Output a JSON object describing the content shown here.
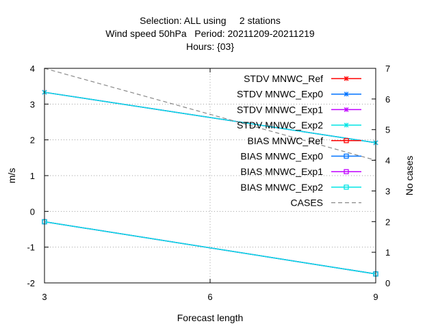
{
  "chart_data": {
    "type": "line",
    "title_lines": [
      "Selection: ALL using     2 stations",
      "Wind speed 50hPa   Period: 20211209-20211219",
      "Hours: {03}"
    ],
    "xlabel": "Forecast length",
    "ylabel": "m/s",
    "y2label": "No cases",
    "x_ticks": [
      3,
      6,
      9
    ],
    "y_ticks": [
      -2,
      -1,
      0,
      1,
      2,
      3,
      4
    ],
    "y2_ticks": [
      0,
      1,
      2,
      3,
      4,
      5,
      6,
      7
    ],
    "xlim": [
      3,
      9
    ],
    "ylim": [
      -2,
      4
    ],
    "y2lim": [
      0,
      7
    ],
    "grid": true,
    "legend_position": "top-right",
    "series": [
      {
        "name": "STDV MNWC_Ref",
        "color": "#ff0000",
        "marker": "x",
        "axis": "y1",
        "x": [
          3,
          9
        ],
        "values": [
          3.33,
          1.92
        ]
      },
      {
        "name": "STDV MNWC_Exp0",
        "color": "#0072ff",
        "marker": "x",
        "axis": "y1",
        "x": [
          3,
          9
        ],
        "values": [
          3.33,
          1.92
        ]
      },
      {
        "name": "STDV MNWC_Exp1",
        "color": "#c000ff",
        "marker": "x",
        "axis": "y1",
        "x": [
          3,
          9
        ],
        "values": [
          3.33,
          1.92
        ]
      },
      {
        "name": "STDV MNWC_Exp2",
        "color": "#00e5e5",
        "marker": "x",
        "axis": "y1",
        "x": [
          3,
          9
        ],
        "values": [
          3.33,
          1.92
        ]
      },
      {
        "name": "BIAS MNWC_Ref",
        "color": "#ff0000",
        "marker": "square",
        "axis": "y1",
        "x": [
          3,
          9
        ],
        "values": [
          -0.29,
          -1.75
        ]
      },
      {
        "name": "BIAS MNWC_Exp0",
        "color": "#0072ff",
        "marker": "square",
        "axis": "y1",
        "x": [
          3,
          9
        ],
        "values": [
          -0.29,
          -1.75
        ]
      },
      {
        "name": "BIAS MNWC_Exp1",
        "color": "#c000ff",
        "marker": "square",
        "axis": "y1",
        "x": [
          3,
          9
        ],
        "values": [
          -0.29,
          -1.75
        ]
      },
      {
        "name": "BIAS MNWC_Exp2",
        "color": "#00e5e5",
        "marker": "square",
        "axis": "y1",
        "x": [
          3,
          9
        ],
        "values": [
          -0.29,
          -1.75
        ]
      },
      {
        "name": "CASES",
        "color": "#888888",
        "marker": "none",
        "axis": "y2",
        "dashed": true,
        "x": [
          3,
          9
        ],
        "values": [
          7,
          4
        ]
      }
    ]
  }
}
